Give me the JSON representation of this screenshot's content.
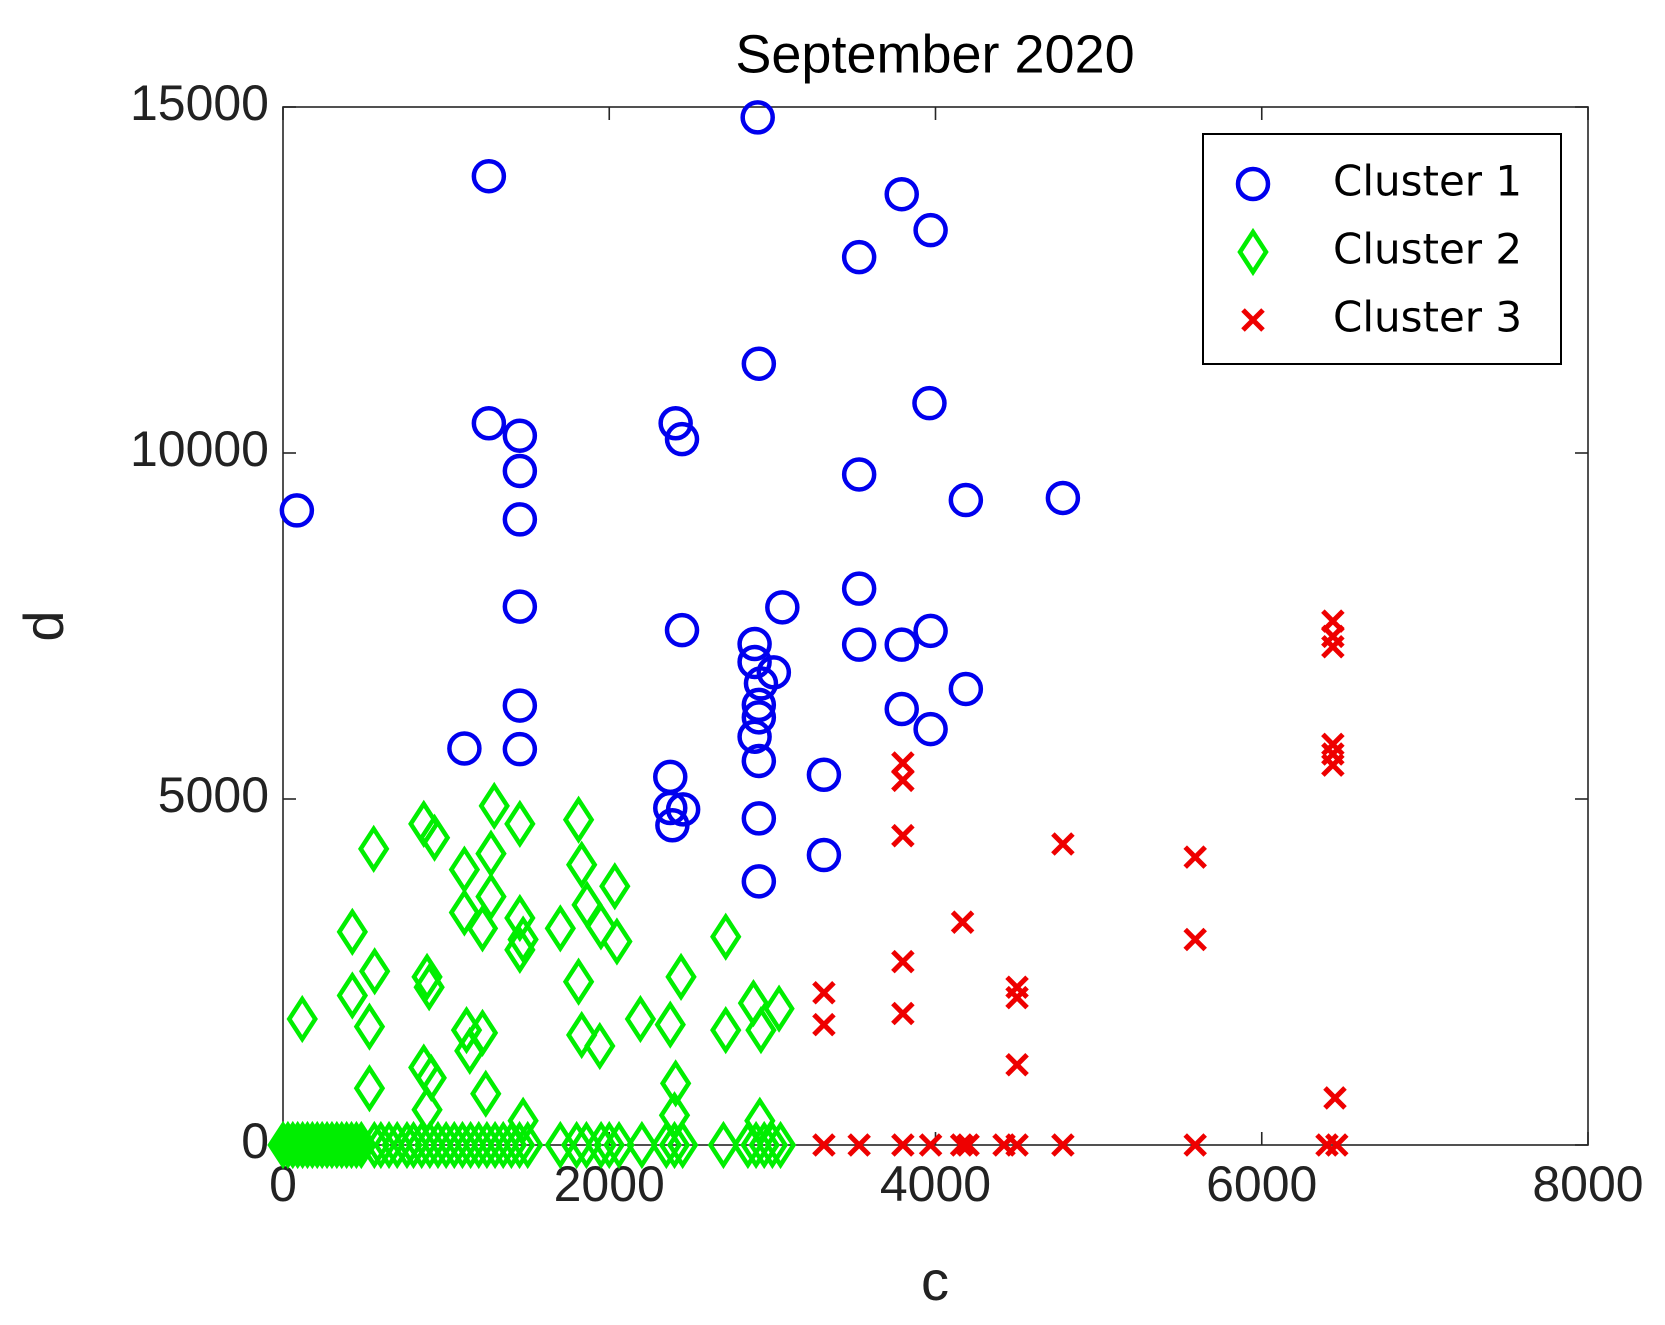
{
  "chart_data": {
    "type": "scatter",
    "title": "September 2020",
    "x_label": "c",
    "y_label": "d",
    "xlim": [
      0,
      8000
    ],
    "ylim": [
      0,
      15000
    ],
    "xticks": [
      0,
      2000,
      4000,
      6000,
      8000
    ],
    "yticks": [
      0,
      5000,
      10000,
      15000
    ],
    "legend": "upper right",
    "grid": false,
    "series": [
      {
        "name": "Cluster 1",
        "color": "#0000ee",
        "marker": "circle",
        "x": [
          85,
          1262,
          2910,
          3793,
          3970,
          3532,
          2917,
          3963,
          1262,
          1452,
          1452,
          1452,
          2407,
          2446,
          3532,
          4186,
          4781,
          3532,
          1452,
          3061,
          2446,
          2891,
          3532,
          3793,
          3970,
          2891,
          3009,
          2930,
          2917,
          1452,
          4186,
          3793,
          3970,
          2917,
          2891,
          1112,
          1452,
          2917,
          3316,
          2374,
          2374,
          2453,
          2387,
          2917,
          3316,
          2917
        ],
        "values": [
          9170,
          14000,
          14850,
          13740,
          13220,
          12830,
          11290,
          10720,
          10430,
          10250,
          9740,
          9040,
          10430,
          10200,
          9690,
          9320,
          9350,
          8040,
          7780,
          7770,
          7440,
          7240,
          7230,
          7230,
          7430,
          6980,
          6830,
          6670,
          6360,
          6350,
          6590,
          6300,
          6010,
          6180,
          5900,
          5730,
          5720,
          5550,
          5350,
          5320,
          4870,
          4850,
          4620,
          4720,
          4190,
          3810
        ]
      },
      {
        "name": "Cluster 2",
        "color": "#00ee00",
        "marker": "diamond",
        "x": [
          118,
          425,
          556,
          562,
          425,
          530,
          530,
          863,
          929,
          883,
          896,
          863,
          909,
          883,
          1112,
          1275,
          1295,
          1452,
          1112,
          1275,
          1223,
          1452,
          1472,
          1452,
          1125,
          1223,
          1145,
          1243,
          1472,
          1700,
          1812,
          1831,
          1864,
          1949,
          2034,
          2047,
          1812,
          1831,
          1942,
          2191,
          2440,
          2374,
          2407,
          2400,
          2714,
          2714,
          2884,
          2930,
          3041,
          2923,
          0,
          30,
          60,
          90,
          120,
          150,
          180,
          210,
          240,
          270,
          300,
          330,
          360,
          390,
          420,
          450,
          480,
          560,
          600,
          650,
          700,
          760,
          800,
          850,
          900,
          950,
          1000,
          1050,
          1100,
          1150,
          1200,
          1250,
          1300,
          1350,
          1400,
          1450,
          1500,
          1700,
          1800,
          1860,
          1950,
          2000,
          2060,
          2200,
          2350,
          2400,
          2450,
          2700,
          2850,
          2900,
          2950,
          3000,
          3050
        ],
        "values": [
          1820,
          3080,
          4280,
          2510,
          2160,
          1710,
          820,
          4640,
          4440,
          2430,
          2280,
          1120,
          970,
          510,
          3980,
          4210,
          4900,
          4640,
          3360,
          3590,
          3130,
          3280,
          2970,
          2820,
          1660,
          1620,
          1360,
          740,
          350,
          3130,
          4700,
          4050,
          3470,
          3160,
          3740,
          2940,
          2360,
          1590,
          1430,
          1820,
          2430,
          1740,
          890,
          430,
          3010,
          1660,
          2050,
          1660,
          1970,
          350,
          0,
          0,
          0,
          0,
          0,
          0,
          0,
          0,
          0,
          0,
          0,
          0,
          0,
          0,
          0,
          0,
          0,
          0,
          0,
          0,
          0,
          0,
          0,
          0,
          0,
          0,
          0,
          0,
          0,
          0,
          0,
          0,
          0,
          0,
          0,
          0,
          0,
          0,
          0,
          0,
          0,
          0,
          0,
          0,
          0,
          0,
          0,
          0,
          0,
          0,
          0,
          0,
          0
        ]
      },
      {
        "name": "Cluster 3",
        "color": "#ee0000",
        "marker": "x",
        "x": [
          6436,
          6436,
          6436,
          6436,
          6436,
          6436,
          3800,
          3800,
          3800,
          4781,
          5592,
          5592,
          4166,
          3800,
          3800,
          3316,
          3316,
          4500,
          4500,
          4500,
          6449,
          3316,
          3532,
          3800,
          3970,
          4160,
          4200,
          4420,
          4500,
          4781,
          5592,
          6400,
          6460
        ],
        "values": [
          7570,
          7350,
          7200,
          5790,
          5650,
          5490,
          5520,
          5270,
          4470,
          4350,
          4160,
          2970,
          3220,
          2650,
          1900,
          2200,
          1740,
          2280,
          2130,
          1160,
          680,
          0,
          0,
          0,
          0,
          0,
          0,
          0,
          0,
          0,
          0,
          0,
          0
        ]
      }
    ]
  }
}
